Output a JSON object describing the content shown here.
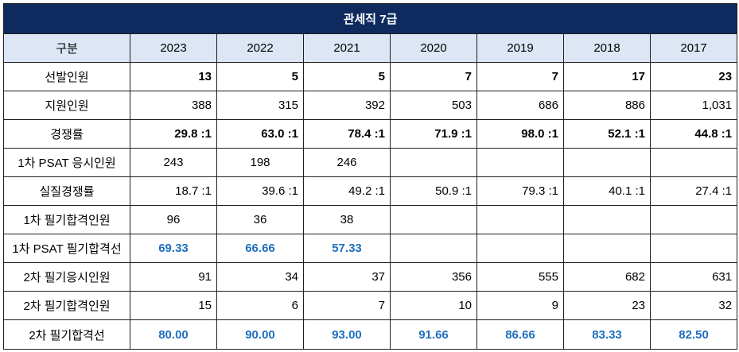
{
  "title": "관세직 7급",
  "header": {
    "label": "구분",
    "years": [
      "2023",
      "2022",
      "2021",
      "2020",
      "2019",
      "2018",
      "2017"
    ]
  },
  "rows": [
    {
      "label": "선발인원",
      "style": "bold",
      "values": [
        "13",
        "5",
        "5",
        "7",
        "7",
        "17",
        "23"
      ]
    },
    {
      "label": "지원인원",
      "style": "normal",
      "values": [
        "388",
        "315",
        "392",
        "503",
        "686",
        "886",
        "1,031"
      ]
    },
    {
      "label": "경쟁률",
      "style": "bold",
      "values": [
        "29.8 :1",
        "63.0 :1",
        "78.4 :1",
        "71.9 :1",
        "98.0 :1",
        "52.1 :1",
        "44.8 :1"
      ]
    },
    {
      "label": "1차  PSAT 응시인원",
      "style": "normal-center",
      "values": [
        "243",
        "198",
        "246",
        "",
        "",
        "",
        ""
      ]
    },
    {
      "label": "실질경쟁률",
      "style": "normal",
      "values": [
        "18.7 :1",
        "39.6 :1",
        "49.2 :1",
        "50.9 :1",
        "79.3 :1",
        "40.1 :1",
        "27.4 :1"
      ]
    },
    {
      "label": "1차 필기합격인원",
      "style": "normal-center",
      "values": [
        "96",
        "36",
        "38",
        "",
        "",
        "",
        ""
      ]
    },
    {
      "label": "1차 PSAT 필기합격선",
      "style": "blue",
      "values": [
        "69.33",
        "66.66",
        "57.33",
        "",
        "",
        "",
        ""
      ]
    },
    {
      "label": "2차 필기응시인원",
      "style": "normal",
      "values": [
        "91",
        "34",
        "37",
        "356",
        "555",
        "682",
        "631"
      ]
    },
    {
      "label": "2차 필기합격인원",
      "style": "normal",
      "values": [
        "15",
        "6",
        "7",
        "10",
        "9",
        "23",
        "32"
      ]
    },
    {
      "label": "2차 필기합격선",
      "style": "blue",
      "values": [
        "80.00",
        "90.00",
        "93.00",
        "91.66",
        "86.66",
        "83.33",
        "82.50"
      ]
    }
  ]
}
